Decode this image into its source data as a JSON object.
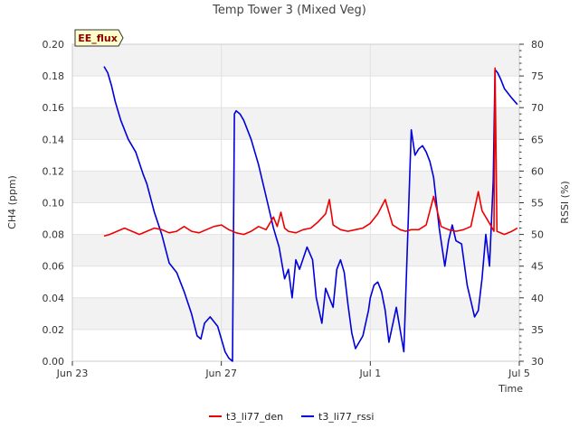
{
  "chart_data": {
    "type": "line",
    "title": "Temp Tower 3 (Mixed Veg)",
    "xlabel": "Time",
    "ylabel_left": "CH4 (ppm)",
    "ylabel_right": "RSSI (%)",
    "badge": "EE_flux",
    "xlim": [
      0,
      12
    ],
    "x_ticks": [
      0,
      4,
      8,
      12
    ],
    "x_tick_labels": [
      "Jun 23",
      "Jun 27",
      "Jul 1",
      "Jul 5"
    ],
    "ylim_left": [
      0,
      0.2
    ],
    "y_left_ticks": [
      0.0,
      0.02,
      0.04,
      0.06,
      0.08,
      0.1,
      0.12,
      0.14,
      0.16,
      0.18,
      0.2
    ],
    "y_left_tick_labels": [
      "0.00",
      "0.02",
      "0.04",
      "0.06",
      "0.08",
      "0.10",
      "0.12",
      "0.14",
      "0.16",
      "0.18",
      "0.20"
    ],
    "ylim_right": [
      30,
      80
    ],
    "y_right_ticks": [
      30,
      35,
      40,
      45,
      50,
      55,
      60,
      65,
      70,
      75,
      80
    ],
    "y_right_tick_labels": [
      "30",
      "35",
      "40",
      "45",
      "50",
      "55",
      "60",
      "65",
      "70",
      "75",
      "80"
    ],
    "grid": true,
    "legend_position": "bottom",
    "series": [
      {
        "name": "t3_li77_den",
        "color": "#ee0000",
        "axis": "left",
        "x": [
          0.85,
          1.0,
          1.2,
          1.4,
          1.6,
          1.8,
          2.0,
          2.2,
          2.4,
          2.6,
          2.8,
          3.0,
          3.2,
          3.4,
          3.6,
          3.8,
          4.0,
          4.2,
          4.4,
          4.6,
          4.8,
          5.0,
          5.2,
          5.4,
          5.5,
          5.6,
          5.7,
          5.8,
          6.0,
          6.2,
          6.4,
          6.6,
          6.8,
          6.9,
          7.0,
          7.2,
          7.4,
          7.6,
          7.8,
          8.0,
          8.2,
          8.4,
          8.6,
          8.8,
          8.95,
          9.1,
          9.3,
          9.5,
          9.7,
          9.9,
          10.1,
          10.3,
          10.5,
          10.7,
          10.9,
          11.0,
          11.2,
          11.32,
          11.35,
          11.4,
          11.6,
          11.8,
          11.95
        ],
        "values": [
          0.079,
          0.08,
          0.082,
          0.084,
          0.082,
          0.08,
          0.082,
          0.084,
          0.083,
          0.081,
          0.082,
          0.085,
          0.082,
          0.081,
          0.083,
          0.085,
          0.086,
          0.083,
          0.081,
          0.08,
          0.082,
          0.085,
          0.083,
          0.091,
          0.085,
          0.094,
          0.084,
          0.082,
          0.081,
          0.083,
          0.084,
          0.088,
          0.093,
          0.102,
          0.086,
          0.083,
          0.082,
          0.083,
          0.084,
          0.087,
          0.093,
          0.102,
          0.086,
          0.083,
          0.082,
          0.083,
          0.083,
          0.086,
          0.104,
          0.085,
          0.083,
          0.082,
          0.083,
          0.085,
          0.107,
          0.095,
          0.087,
          0.082,
          0.185,
          0.082,
          0.08,
          0.082,
          0.084
        ]
      },
      {
        "name": "t3_li77_rssi",
        "color": "#0000dd",
        "axis": "right",
        "x": [
          0.85,
          0.95,
          1.05,
          1.15,
          1.3,
          1.5,
          1.7,
          1.9,
          2.0,
          2.2,
          2.4,
          2.6,
          2.8,
          3.0,
          3.2,
          3.35,
          3.45,
          3.55,
          3.7,
          3.9,
          4.0,
          4.1,
          4.2,
          4.3,
          4.35,
          4.4,
          4.5,
          4.6,
          4.8,
          5.0,
          5.2,
          5.4,
          5.55,
          5.7,
          5.8,
          5.9,
          6.0,
          6.1,
          6.3,
          6.45,
          6.55,
          6.7,
          6.8,
          7.0,
          7.1,
          7.2,
          7.3,
          7.4,
          7.5,
          7.6,
          7.8,
          7.95,
          8.0,
          8.1,
          8.2,
          8.3,
          8.4,
          8.5,
          8.7,
          8.9,
          9.1,
          9.2,
          9.3,
          9.4,
          9.5,
          9.6,
          9.7,
          9.85,
          10.0,
          10.1,
          10.2,
          10.3,
          10.45,
          10.6,
          10.7,
          10.8,
          10.9,
          11.0,
          11.1,
          11.2,
          11.3,
          11.35,
          11.42,
          11.5,
          11.6,
          11.8,
          11.95
        ],
        "values": [
          76.5,
          75.5,
          73.5,
          71.0,
          68.0,
          65.0,
          63.0,
          59.5,
          58.0,
          53.5,
          50.0,
          45.5,
          44.0,
          41.0,
          37.5,
          34.0,
          33.5,
          36.0,
          37.0,
          35.5,
          33.5,
          31.5,
          30.5,
          30.0,
          69.0,
          69.5,
          69.0,
          68.0,
          65.0,
          61.0,
          56.0,
          51.0,
          48.0,
          43.0,
          44.5,
          40.0,
          46.0,
          44.5,
          48.0,
          46.0,
          40.0,
          36.0,
          41.5,
          38.5,
          44.5,
          46.0,
          44.0,
          39.0,
          34.5,
          32.0,
          34.0,
          38.0,
          40.0,
          42.0,
          42.5,
          41.0,
          38.0,
          33.0,
          38.5,
          31.5,
          66.5,
          62.5,
          63.5,
          64.0,
          63.0,
          61.5,
          59.0,
          51.0,
          45.0,
          49.0,
          51.5,
          49.0,
          48.5,
          42.0,
          39.5,
          37.0,
          38.0,
          43.0,
          50.0,
          45.0,
          58.5,
          76.0,
          75.5,
          74.5,
          73.0,
          71.5,
          70.5
        ]
      }
    ]
  }
}
